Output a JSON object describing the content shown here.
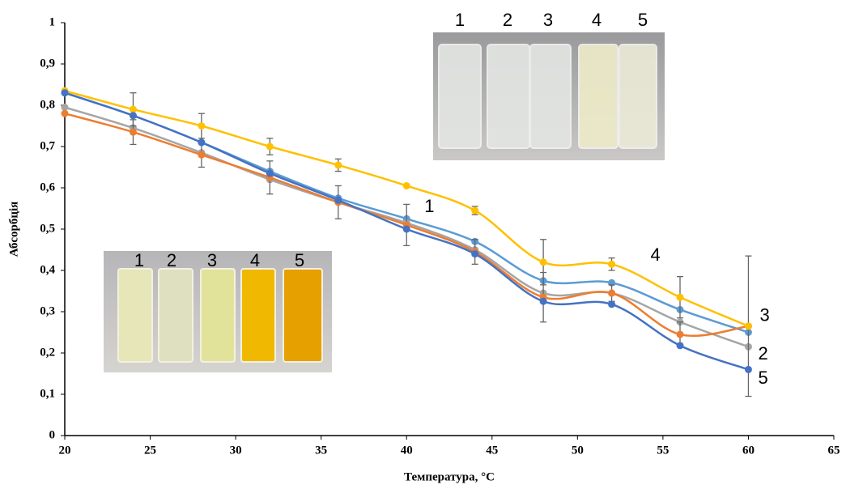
{
  "chart_data": {
    "type": "line",
    "x_label": "Температура, °С",
    "y_label": "Абсорбція",
    "x": [
      20,
      24,
      28,
      32,
      36,
      40,
      44,
      48,
      52,
      56,
      60
    ],
    "xlim": [
      20,
      65
    ],
    "xticks": [
      20,
      25,
      30,
      35,
      40,
      45,
      50,
      55,
      60,
      65
    ],
    "ylim": [
      0,
      1
    ],
    "yticks": [
      0,
      {
        "value": 0.1,
        "label": "0,1"
      },
      {
        "value": 0.2,
        "label": "0,2"
      },
      {
        "value": 0.3,
        "label": "0,3"
      },
      {
        "value": 0.4,
        "label": "0,4"
      },
      {
        "value": 0.5,
        "label": "0,5"
      },
      {
        "value": 0.6,
        "label": "0,6"
      },
      {
        "value": 0.7,
        "label": "0,7"
      },
      {
        "value": 0.8,
        "label": "0,8"
      },
      {
        "value": 0.9,
        "label": "0,9"
      },
      1
    ],
    "grid": false,
    "series": [
      {
        "name": "1",
        "color": "#5b9bd5",
        "values": [
          0.83,
          0.775,
          0.71,
          0.64,
          0.575,
          0.525,
          0.47,
          0.375,
          0.37,
          0.305,
          0.25
        ]
      },
      {
        "name": "2",
        "color": "#a5a5a5",
        "values": [
          0.795,
          0.745,
          0.685,
          0.62,
          0.565,
          0.515,
          0.45,
          0.345,
          0.345,
          0.275,
          0.215
        ]
      },
      {
        "name": "3",
        "color": "#ed7d31",
        "values": [
          0.78,
          0.735,
          0.68,
          0.625,
          0.565,
          0.51,
          0.445,
          0.335,
          0.345,
          0.245,
          0.265
        ],
        "errors": [
          0,
          0.03,
          0.03,
          0.04,
          0.04,
          0.05,
          0.03,
          0.06,
          0.02,
          0.03,
          0.17
        ]
      },
      {
        "name": "4",
        "color": "#ffc000",
        "values": [
          0.835,
          0.79,
          0.75,
          0.7,
          0.655,
          0.605,
          0.545,
          0.42,
          0.415,
          0.335,
          0.265
        ],
        "errors": [
          0,
          0.04,
          0.03,
          0.02,
          0.015,
          0,
          0.01,
          0.055,
          0.015,
          0.05,
          0
        ]
      },
      {
        "name": "5",
        "color": "#4472c4",
        "values": [
          0.83,
          0.775,
          0.71,
          0.635,
          0.57,
          0.5,
          0.44,
          0.325,
          0.318,
          0.218,
          0.16
        ]
      }
    ],
    "insets": [
      {
        "labels": [
          "1",
          "2",
          "3",
          "4",
          "5"
        ]
      },
      {
        "labels": [
          "1",
          "2",
          "3",
          "4",
          "5"
        ]
      }
    ]
  }
}
